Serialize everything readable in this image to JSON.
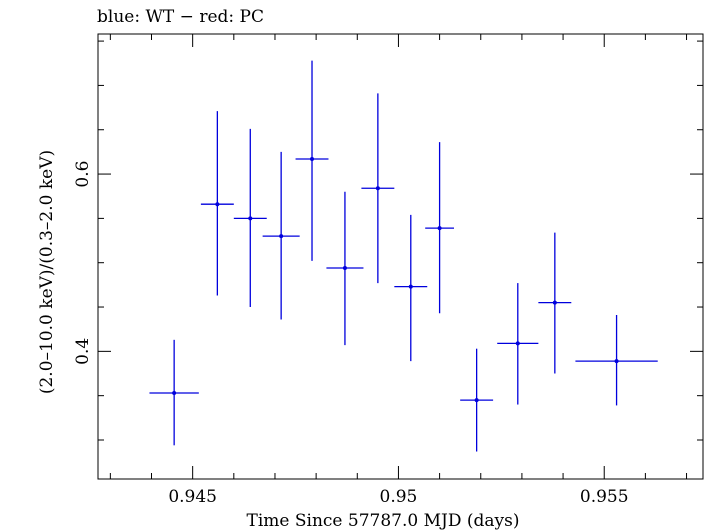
{
  "chart_data": {
    "type": "scatter",
    "title": "blue: WT − red: PC",
    "xlabel": "Time Since 57787.0 MJD (days)",
    "ylabel": "(2.0–10.0 keV)/(0.3–2.0 keV)",
    "xlim": [
      0.9427,
      0.9574
    ],
    "ylim": [
      0.256,
      0.758
    ],
    "x_ticks": [
      0.945,
      0.95,
      0.955
    ],
    "x_tick_labels": [
      "0.945",
      "0.95",
      "0.955"
    ],
    "y_ticks": [
      0.4,
      0.6
    ],
    "y_tick_labels": [
      "0.4",
      "0.6"
    ],
    "grid": false,
    "series": [
      {
        "color": "#0000dd",
        "points": [
          {
            "x": 0.94455,
            "y": 0.353,
            "xerr": 0.0006,
            "yerr_low": 0.059,
            "yerr_high": 0.06
          },
          {
            "x": 0.9456,
            "y": 0.566,
            "xerr": 0.0004,
            "yerr_low": 0.103,
            "yerr_high": 0.105
          },
          {
            "x": 0.9464,
            "y": 0.55,
            "xerr": 0.0004,
            "yerr_low": 0.1,
            "yerr_high": 0.101
          },
          {
            "x": 0.94715,
            "y": 0.53,
            "xerr": 0.00045,
            "yerr_low": 0.094,
            "yerr_high": 0.095
          },
          {
            "x": 0.9479,
            "y": 0.617,
            "xerr": 0.0004,
            "yerr_low": 0.115,
            "yerr_high": 0.111
          },
          {
            "x": 0.9487,
            "y": 0.494,
            "xerr": 0.00045,
            "yerr_low": 0.087,
            "yerr_high": 0.086
          },
          {
            "x": 0.9495,
            "y": 0.584,
            "xerr": 0.0004,
            "yerr_low": 0.107,
            "yerr_high": 0.107
          },
          {
            "x": 0.9503,
            "y": 0.473,
            "xerr": 0.0004,
            "yerr_low": 0.084,
            "yerr_high": 0.081
          },
          {
            "x": 0.951,
            "y": 0.539,
            "xerr": 0.00035,
            "yerr_low": 0.096,
            "yerr_high": 0.097
          },
          {
            "x": 0.9519,
            "y": 0.345,
            "xerr": 0.0004,
            "yerr_low": 0.058,
            "yerr_high": 0.058
          },
          {
            "x": 0.9529,
            "y": 0.409,
            "xerr": 0.0005,
            "yerr_low": 0.069,
            "yerr_high": 0.068
          },
          {
            "x": 0.9538,
            "y": 0.455,
            "xerr": 0.0004,
            "yerr_low": 0.08,
            "yerr_high": 0.079
          },
          {
            "x": 0.9553,
            "y": 0.389,
            "xerr": 0.001,
            "yerr_low": 0.05,
            "yerr_high": 0.052
          }
        ]
      }
    ]
  }
}
